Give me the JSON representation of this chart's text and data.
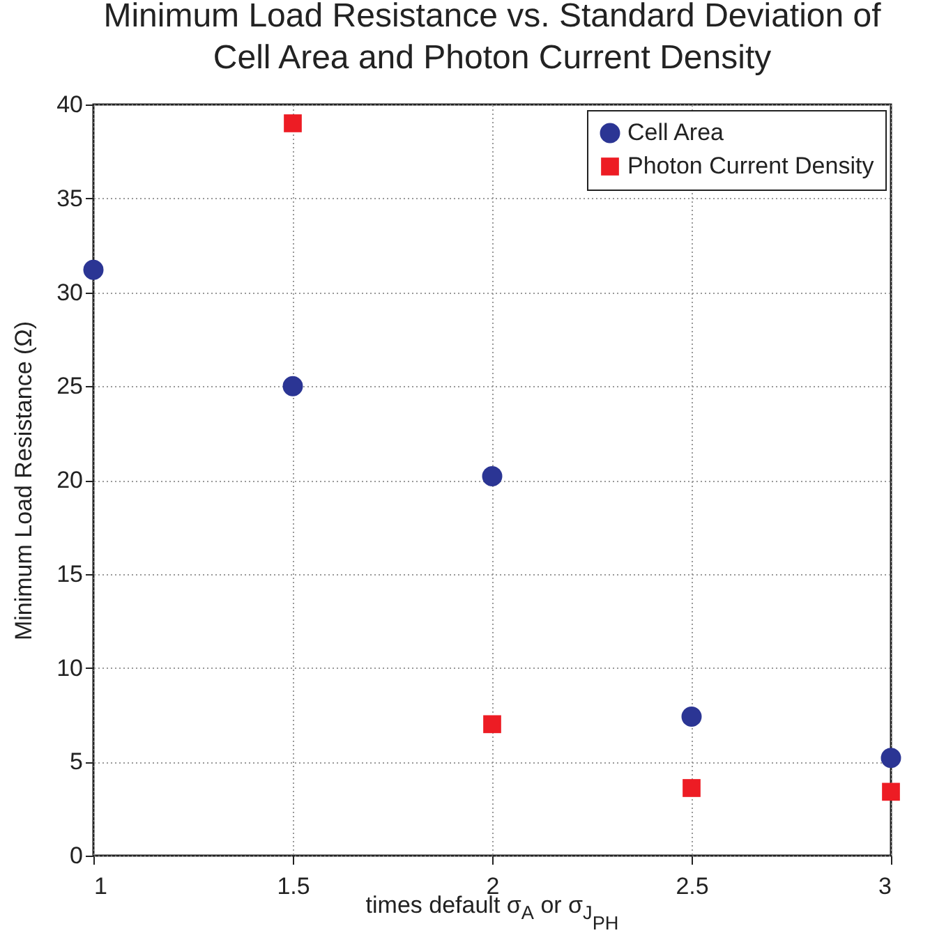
{
  "chart_data": {
    "type": "scatter",
    "title": "Minimum Load Resistance vs. Standard Deviation of\nCell Area and Photon Current Density",
    "xlabel": "times default σ$_{A}$ or σ$_{J}$$_{PH}$",
    "ylabel": "Minimum Load Resistance (Ω)",
    "x": [
      1,
      1.5,
      2,
      2.5,
      3
    ],
    "series": [
      {
        "name": "Cell Area",
        "color": "#2b3594",
        "marker": "circle",
        "values": [
          31.2,
          25.0,
          20.2,
          7.4,
          5.2
        ]
      },
      {
        "name": "Photon Current Density",
        "color": "#ed1c24",
        "marker": "square",
        "x": [
          1.5,
          2,
          2.5,
          3
        ],
        "values": [
          39.0,
          7.0,
          3.6,
          3.4
        ]
      }
    ],
    "xlim": [
      1,
      3
    ],
    "xticks": [
      1,
      1.5,
      2,
      2.5,
      3
    ],
    "ylim": [
      0,
      40
    ],
    "yticks": [
      0,
      5,
      10,
      15,
      20,
      25,
      30,
      35,
      40
    ],
    "grid": true,
    "legend": "top right"
  }
}
